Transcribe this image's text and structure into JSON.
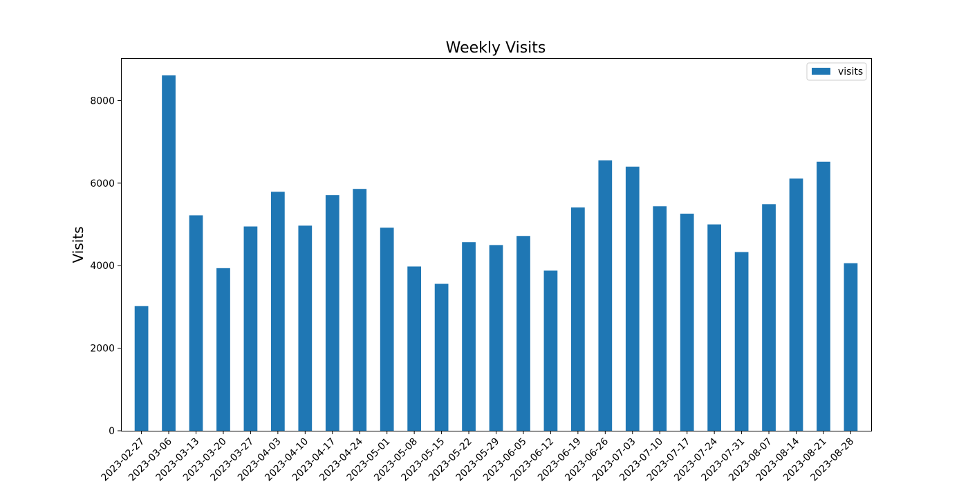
{
  "chart_data": {
    "type": "bar",
    "title": "Weekly Visits",
    "xlabel": "",
    "ylabel": "Visits",
    "categories": [
      "2023-02-27",
      "2023-03-06",
      "2023-03-13",
      "2023-03-20",
      "2023-03-27",
      "2023-04-03",
      "2023-04-10",
      "2023-04-17",
      "2023-04-24",
      "2023-05-01",
      "2023-05-08",
      "2023-05-15",
      "2023-05-22",
      "2023-05-29",
      "2023-06-05",
      "2023-06-12",
      "2023-06-19",
      "2023-06-26",
      "2023-07-03",
      "2023-07-10",
      "2023-07-17",
      "2023-07-24",
      "2023-07-31",
      "2023-08-07",
      "2023-08-14",
      "2023-08-21",
      "2023-08-28"
    ],
    "series": [
      {
        "name": "visits",
        "color": "#1f77b4",
        "values": [
          3020,
          8610,
          5220,
          3940,
          4950,
          5790,
          4970,
          5710,
          5860,
          4920,
          3980,
          3560,
          4570,
          4500,
          4720,
          3880,
          5410,
          6550,
          6400,
          5440,
          5260,
          5000,
          4330,
          5490,
          6110,
          6520,
          4060
        ]
      }
    ],
    "ylim": [
      0,
      9030
    ],
    "yticks": [
      0,
      2000,
      4000,
      6000,
      8000
    ],
    "grid": false,
    "legend": {
      "position": "top-right",
      "entries": [
        "visits"
      ]
    }
  }
}
